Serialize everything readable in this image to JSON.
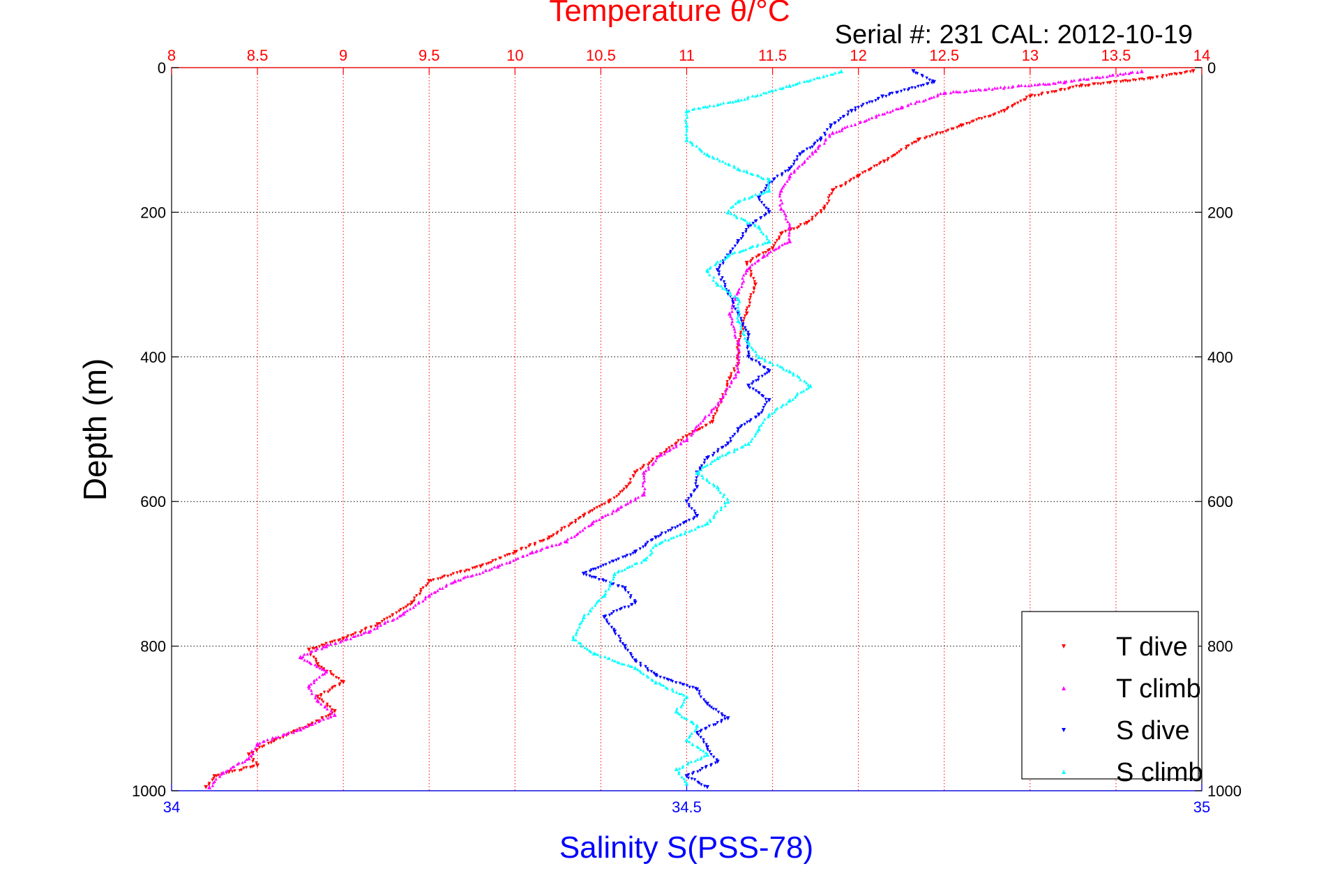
{
  "chart_data": {
    "type": "scatter",
    "title": "Temperature θ/°C",
    "subtitle": "Serial #: 231  CAL: 2012-10-19",
    "ylabel": "Depth (m)",
    "xlabel_bottom": "Salinity S(PSS-78)",
    "xlabel_top": "Temperature θ/°C",
    "ylim": [
      0,
      1000
    ],
    "y_reversed": true,
    "xlim_bottom": [
      34,
      35
    ],
    "xlim_top": [
      8,
      14
    ],
    "y_ticks": [
      "0",
      "200",
      "400",
      "600",
      "800",
      "1000"
    ],
    "top_ticks": [
      "8",
      "8.5",
      "9",
      "9.5",
      "10",
      "10.5",
      "11",
      "11.5",
      "12",
      "12.5",
      "13",
      "13.5",
      "14"
    ],
    "bottom_ticks": [
      "34",
      "34.5",
      "35"
    ],
    "grid": true,
    "legend_position": "bottom-right",
    "colors": {
      "top_axis": "#ff0000",
      "bottom_axis": "#0000ff",
      "title": "#ff0000"
    },
    "series": [
      {
        "name": "T dive",
        "axis": "top",
        "color": "#ff0000",
        "marker": "▼",
        "points": [
          [
            13.95,
            5
          ],
          [
            13.7,
            15
          ],
          [
            13.3,
            25
          ],
          [
            13.0,
            40
          ],
          [
            12.85,
            60
          ],
          [
            12.6,
            80
          ],
          [
            12.35,
            100
          ],
          [
            12.15,
            130
          ],
          [
            12.0,
            150
          ],
          [
            11.85,
            170
          ],
          [
            11.8,
            195
          ],
          [
            11.7,
            215
          ],
          [
            11.55,
            230
          ],
          [
            11.5,
            250
          ],
          [
            11.35,
            270
          ],
          [
            11.4,
            300
          ],
          [
            11.35,
            340
          ],
          [
            11.3,
            380
          ],
          [
            11.3,
            410
          ],
          [
            11.25,
            430
          ],
          [
            11.2,
            460
          ],
          [
            11.15,
            490
          ],
          [
            11.0,
            510
          ],
          [
            10.85,
            535
          ],
          [
            10.7,
            560
          ],
          [
            10.65,
            580
          ],
          [
            10.55,
            600
          ],
          [
            10.4,
            620
          ],
          [
            10.2,
            650
          ],
          [
            10.0,
            670
          ],
          [
            9.8,
            690
          ],
          [
            9.5,
            710
          ],
          [
            9.4,
            740
          ],
          [
            9.2,
            770
          ],
          [
            9.0,
            790
          ],
          [
            8.8,
            805
          ],
          [
            8.85,
            825
          ],
          [
            9.0,
            850
          ],
          [
            8.85,
            870
          ],
          [
            8.95,
            890
          ],
          [
            8.8,
            910
          ],
          [
            8.6,
            930
          ],
          [
            8.45,
            950
          ],
          [
            8.5,
            965
          ],
          [
            8.25,
            980
          ],
          [
            8.2,
            995
          ]
        ]
      },
      {
        "name": "T climb",
        "axis": "top",
        "color": "#ff00ff",
        "marker": "▲",
        "points": [
          [
            13.65,
            5
          ],
          [
            13.2,
            20
          ],
          [
            12.5,
            35
          ],
          [
            12.25,
            55
          ],
          [
            11.85,
            90
          ],
          [
            11.75,
            115
          ],
          [
            11.6,
            150
          ],
          [
            11.55,
            170
          ],
          [
            11.55,
            195
          ],
          [
            11.6,
            220
          ],
          [
            11.6,
            240
          ],
          [
            11.45,
            260
          ],
          [
            11.35,
            280
          ],
          [
            11.3,
            310
          ],
          [
            11.25,
            340
          ],
          [
            11.3,
            380
          ],
          [
            11.3,
            420
          ],
          [
            11.2,
            460
          ],
          [
            11.05,
            500
          ],
          [
            11.0,
            515
          ],
          [
            10.85,
            535
          ],
          [
            10.75,
            560
          ],
          [
            10.75,
            590
          ],
          [
            10.6,
            610
          ],
          [
            10.45,
            630
          ],
          [
            10.3,
            655
          ],
          [
            10.1,
            670
          ],
          [
            9.9,
            690
          ],
          [
            9.65,
            710
          ],
          [
            9.5,
            730
          ],
          [
            9.35,
            755
          ],
          [
            9.15,
            780
          ],
          [
            8.9,
            800
          ],
          [
            8.75,
            815
          ],
          [
            8.9,
            835
          ],
          [
            8.8,
            855
          ],
          [
            8.85,
            875
          ],
          [
            8.95,
            895
          ],
          [
            8.75,
            915
          ],
          [
            8.5,
            935
          ],
          [
            8.45,
            955
          ],
          [
            8.3,
            975
          ],
          [
            8.22,
            995
          ]
        ]
      },
      {
        "name": "S dive",
        "axis": "bottom",
        "color": "#0000ff",
        "marker": "▼",
        "points": [
          [
            34.72,
            5
          ],
          [
            34.74,
            20
          ],
          [
            34.69,
            40
          ],
          [
            34.66,
            60
          ],
          [
            34.64,
            80
          ],
          [
            34.63,
            100
          ],
          [
            34.61,
            120
          ],
          [
            34.6,
            140
          ],
          [
            34.58,
            160
          ],
          [
            34.57,
            180
          ],
          [
            34.58,
            200
          ],
          [
            34.56,
            220
          ],
          [
            34.55,
            240
          ],
          [
            34.54,
            260
          ],
          [
            34.53,
            280
          ],
          [
            34.54,
            310
          ],
          [
            34.55,
            340
          ],
          [
            34.56,
            370
          ],
          [
            34.56,
            400
          ],
          [
            34.58,
            420
          ],
          [
            34.56,
            440
          ],
          [
            34.58,
            460
          ],
          [
            34.57,
            480
          ],
          [
            34.55,
            500
          ],
          [
            34.54,
            520
          ],
          [
            34.52,
            540
          ],
          [
            34.51,
            560
          ],
          [
            34.51,
            580
          ],
          [
            34.5,
            600
          ],
          [
            34.51,
            620
          ],
          [
            34.47,
            650
          ],
          [
            34.45,
            670
          ],
          [
            34.4,
            700
          ],
          [
            34.44,
            720
          ],
          [
            34.45,
            740
          ],
          [
            34.42,
            760
          ],
          [
            34.43,
            780
          ],
          [
            34.44,
            800
          ],
          [
            34.45,
            820
          ],
          [
            34.47,
            840
          ],
          [
            34.51,
            860
          ],
          [
            34.52,
            880
          ],
          [
            34.54,
            900
          ],
          [
            34.51,
            920
          ],
          [
            34.52,
            940
          ],
          [
            34.53,
            960
          ],
          [
            34.5,
            980
          ],
          [
            34.52,
            995
          ]
        ]
      },
      {
        "name": "S climb",
        "axis": "bottom",
        "color": "#00ffff",
        "marker": "▲",
        "points": [
          [
            34.65,
            5
          ],
          [
            34.6,
            25
          ],
          [
            34.55,
            45
          ],
          [
            34.5,
            60
          ],
          [
            34.5,
            80
          ],
          [
            34.5,
            100
          ],
          [
            34.52,
            120
          ],
          [
            34.55,
            140
          ],
          [
            34.58,
            155
          ],
          [
            34.58,
            170
          ],
          [
            34.55,
            185
          ],
          [
            34.54,
            200
          ],
          [
            34.57,
            220
          ],
          [
            34.58,
            240
          ],
          [
            34.54,
            260
          ],
          [
            34.52,
            280
          ],
          [
            34.53,
            300
          ],
          [
            34.55,
            320
          ],
          [
            34.55,
            350
          ],
          [
            34.56,
            380
          ],
          [
            34.57,
            400
          ],
          [
            34.6,
            420
          ],
          [
            34.62,
            440
          ],
          [
            34.6,
            460
          ],
          [
            34.58,
            480
          ],
          [
            34.57,
            500
          ],
          [
            34.56,
            520
          ],
          [
            34.53,
            540
          ],
          [
            34.51,
            560
          ],
          [
            34.53,
            580
          ],
          [
            34.54,
            600
          ],
          [
            34.52,
            630
          ],
          [
            34.47,
            660
          ],
          [
            34.46,
            680
          ],
          [
            34.43,
            700
          ],
          [
            34.42,
            730
          ],
          [
            34.4,
            760
          ],
          [
            34.39,
            790
          ],
          [
            34.41,
            810
          ],
          [
            34.45,
            830
          ],
          [
            34.47,
            850
          ],
          [
            34.5,
            870
          ],
          [
            34.49,
            890
          ],
          [
            34.51,
            910
          ],
          [
            34.5,
            930
          ],
          [
            34.52,
            950
          ],
          [
            34.49,
            970
          ],
          [
            34.5,
            990
          ]
        ]
      }
    ]
  }
}
